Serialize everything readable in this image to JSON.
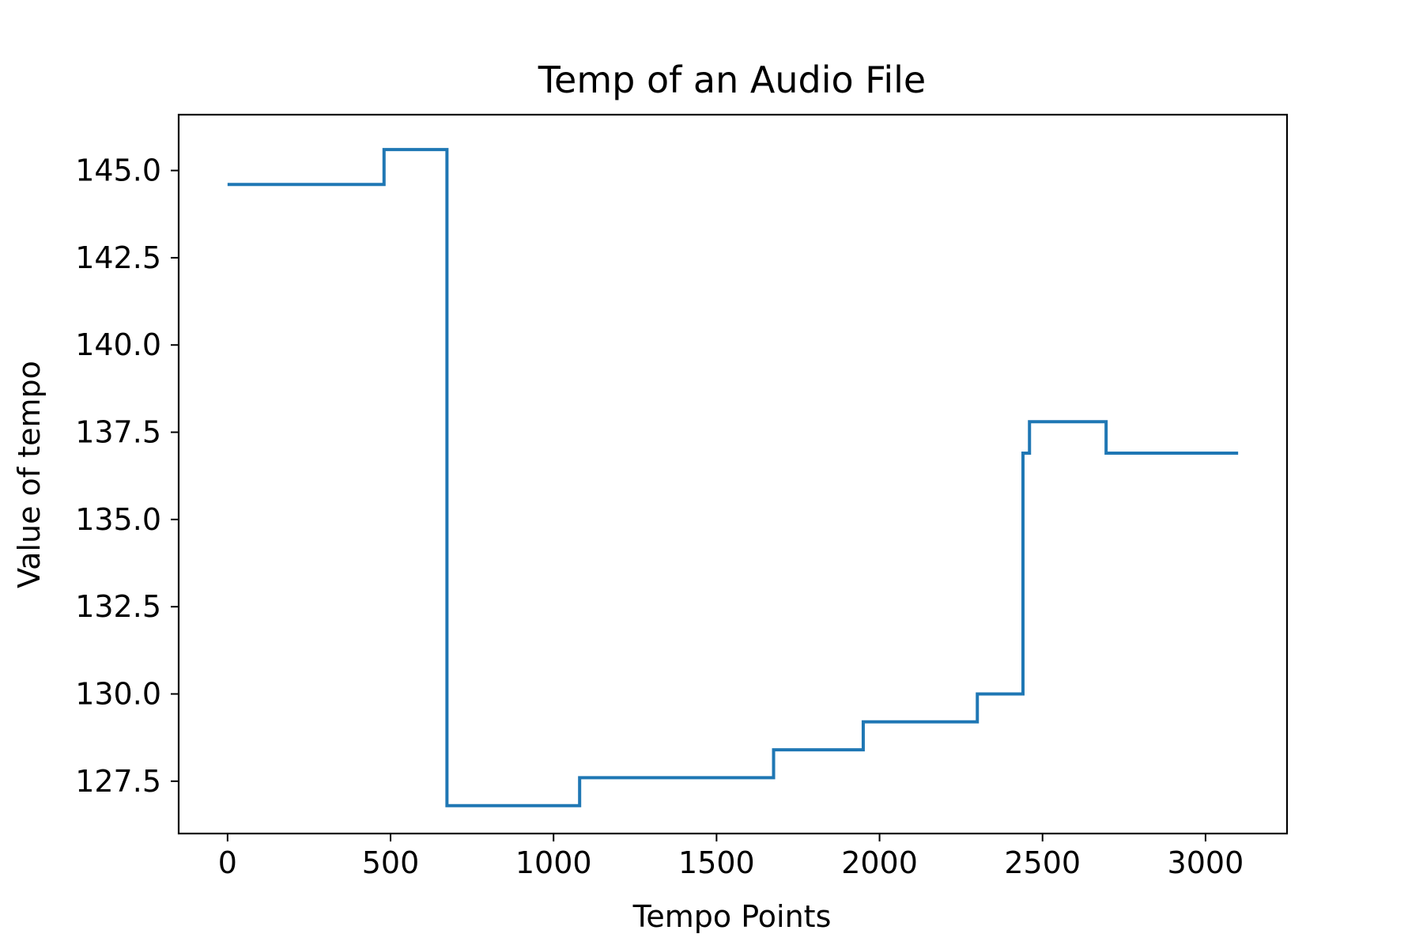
{
  "chart_data": {
    "type": "line",
    "drawstyle": "steps-post",
    "title": "Temp of an Audio File",
    "xlabel": "Tempo Points",
    "ylabel": "Value of tempo",
    "xlim": [
      -150,
      3250
    ],
    "ylim": [
      126.0,
      146.6
    ],
    "xticks": [
      0,
      500,
      1000,
      1500,
      2000,
      2500,
      3000
    ],
    "xtick_labels": [
      "0",
      "500",
      "1000",
      "1500",
      "2000",
      "2500",
      "3000"
    ],
    "yticks": [
      127.5,
      130.0,
      132.5,
      135.0,
      137.5,
      140.0,
      142.5,
      145.0
    ],
    "ytick_labels": [
      "127.5",
      "130.0",
      "132.5",
      "135.0",
      "137.5",
      "140.0",
      "142.5",
      "145.0"
    ],
    "grid": false,
    "line_color": "#1f77b4",
    "series": [
      {
        "x": [
          0,
          480,
          673,
          1080,
          1675,
          1950,
          2300,
          2440,
          2460,
          2695,
          3100
        ],
        "y": [
          144.6,
          145.6,
          126.8,
          127.6,
          128.4,
          129.2,
          130.0,
          136.9,
          137.8,
          136.9,
          136.9
        ]
      }
    ]
  }
}
